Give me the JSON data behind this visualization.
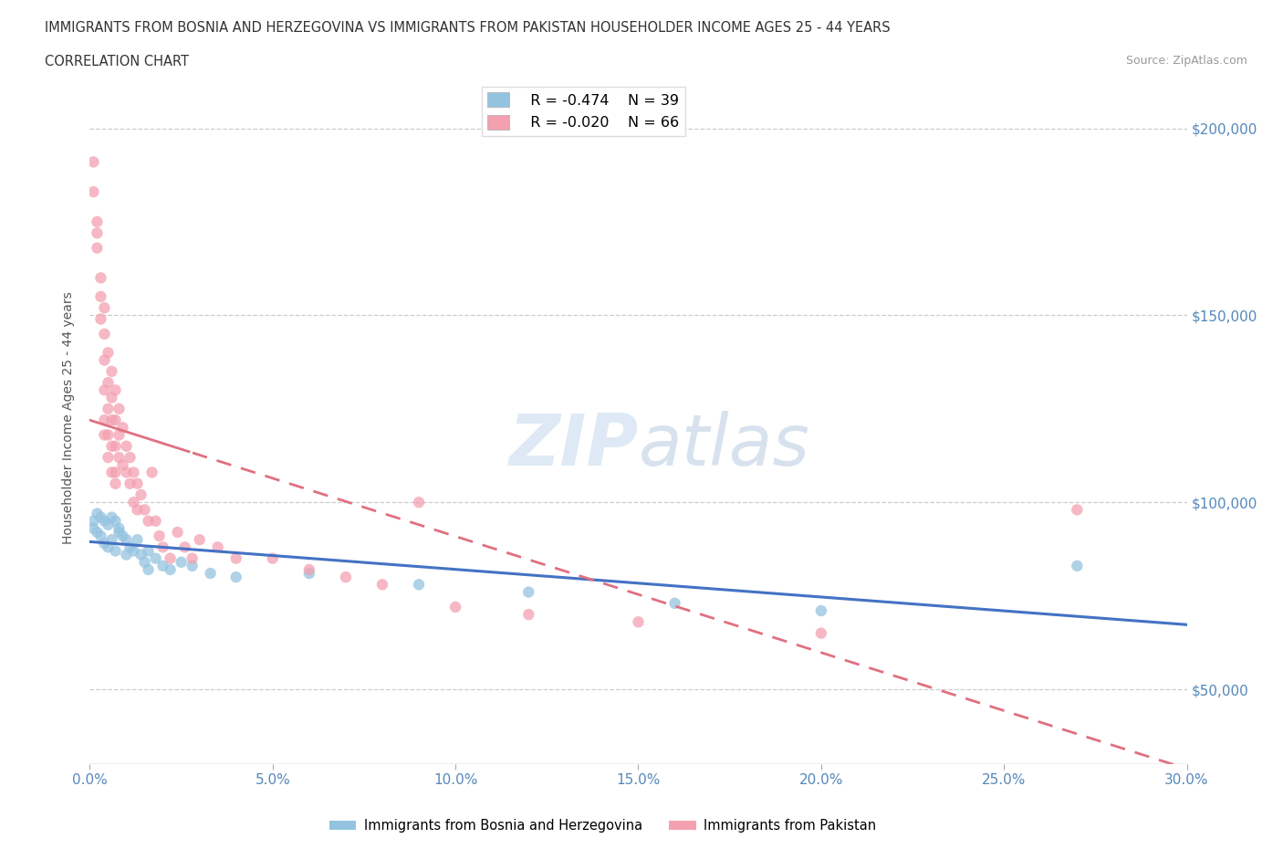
{
  "title_line1": "IMMIGRANTS FROM BOSNIA AND HERZEGOVINA VS IMMIGRANTS FROM PAKISTAN HOUSEHOLDER INCOME AGES 25 - 44 YEARS",
  "title_line2": "CORRELATION CHART",
  "source_text": "Source: ZipAtlas.com",
  "ylabel": "Householder Income Ages 25 - 44 years",
  "xlim": [
    0.0,
    0.3
  ],
  "ylim": [
    30000,
    215000
  ],
  "yticks": [
    50000,
    100000,
    150000,
    200000
  ],
  "xticks": [
    0.0,
    0.05,
    0.1,
    0.15,
    0.2,
    0.25,
    0.3
  ],
  "bosnia_color": "#94C3E0",
  "pakistan_color": "#F4A0B0",
  "bosnia_line_color": "#4472C4",
  "pakistan_line_color": "#E07080",
  "grid_color": "#CCCCCC",
  "legend_R_bosnia": "R = -0.474",
  "legend_N_bosnia": "N = 39",
  "legend_R_pakistan": "R = -0.020",
  "legend_N_pakistan": "N = 66",
  "bosnia_points": [
    [
      0.001,
      95000
    ],
    [
      0.001,
      93000
    ],
    [
      0.002,
      97000
    ],
    [
      0.002,
      92000
    ],
    [
      0.003,
      96000
    ],
    [
      0.003,
      91000
    ],
    [
      0.004,
      95000
    ],
    [
      0.004,
      89000
    ],
    [
      0.005,
      94000
    ],
    [
      0.005,
      88000
    ],
    [
      0.006,
      96000
    ],
    [
      0.006,
      90000
    ],
    [
      0.007,
      95000
    ],
    [
      0.007,
      87000
    ],
    [
      0.008,
      93000
    ],
    [
      0.008,
      92000
    ],
    [
      0.009,
      91000
    ],
    [
      0.01,
      90000
    ],
    [
      0.01,
      86000
    ],
    [
      0.011,
      88000
    ],
    [
      0.012,
      87000
    ],
    [
      0.013,
      90000
    ],
    [
      0.014,
      86000
    ],
    [
      0.015,
      84000
    ],
    [
      0.016,
      87000
    ],
    [
      0.016,
      82000
    ],
    [
      0.018,
      85000
    ],
    [
      0.02,
      83000
    ],
    [
      0.022,
      82000
    ],
    [
      0.025,
      84000
    ],
    [
      0.028,
      83000
    ],
    [
      0.033,
      81000
    ],
    [
      0.04,
      80000
    ],
    [
      0.06,
      81000
    ],
    [
      0.09,
      78000
    ],
    [
      0.12,
      76000
    ],
    [
      0.16,
      73000
    ],
    [
      0.2,
      71000
    ],
    [
      0.27,
      83000
    ]
  ],
  "pakistan_points": [
    [
      0.001,
      191000
    ],
    [
      0.001,
      183000
    ],
    [
      0.002,
      172000
    ],
    [
      0.002,
      168000
    ],
    [
      0.002,
      175000
    ],
    [
      0.003,
      155000
    ],
    [
      0.003,
      160000
    ],
    [
      0.003,
      149000
    ],
    [
      0.004,
      145000
    ],
    [
      0.004,
      138000
    ],
    [
      0.004,
      152000
    ],
    [
      0.004,
      130000
    ],
    [
      0.004,
      122000
    ],
    [
      0.004,
      118000
    ],
    [
      0.005,
      140000
    ],
    [
      0.005,
      132000
    ],
    [
      0.005,
      125000
    ],
    [
      0.005,
      118000
    ],
    [
      0.005,
      112000
    ],
    [
      0.006,
      135000
    ],
    [
      0.006,
      128000
    ],
    [
      0.006,
      122000
    ],
    [
      0.006,
      115000
    ],
    [
      0.006,
      108000
    ],
    [
      0.007,
      130000
    ],
    [
      0.007,
      122000
    ],
    [
      0.007,
      115000
    ],
    [
      0.007,
      108000
    ],
    [
      0.007,
      105000
    ],
    [
      0.008,
      125000
    ],
    [
      0.008,
      118000
    ],
    [
      0.008,
      112000
    ],
    [
      0.009,
      120000
    ],
    [
      0.009,
      110000
    ],
    [
      0.01,
      115000
    ],
    [
      0.01,
      108000
    ],
    [
      0.011,
      112000
    ],
    [
      0.011,
      105000
    ],
    [
      0.012,
      108000
    ],
    [
      0.012,
      100000
    ],
    [
      0.013,
      105000
    ],
    [
      0.013,
      98000
    ],
    [
      0.014,
      102000
    ],
    [
      0.015,
      98000
    ],
    [
      0.016,
      95000
    ],
    [
      0.017,
      108000
    ],
    [
      0.018,
      95000
    ],
    [
      0.019,
      91000
    ],
    [
      0.02,
      88000
    ],
    [
      0.022,
      85000
    ],
    [
      0.024,
      92000
    ],
    [
      0.026,
      88000
    ],
    [
      0.028,
      85000
    ],
    [
      0.03,
      90000
    ],
    [
      0.035,
      88000
    ],
    [
      0.04,
      85000
    ],
    [
      0.05,
      85000
    ],
    [
      0.06,
      82000
    ],
    [
      0.07,
      80000
    ],
    [
      0.08,
      78000
    ],
    [
      0.09,
      100000
    ],
    [
      0.1,
      72000
    ],
    [
      0.12,
      70000
    ],
    [
      0.15,
      68000
    ],
    [
      0.2,
      65000
    ],
    [
      0.27,
      98000
    ]
  ]
}
